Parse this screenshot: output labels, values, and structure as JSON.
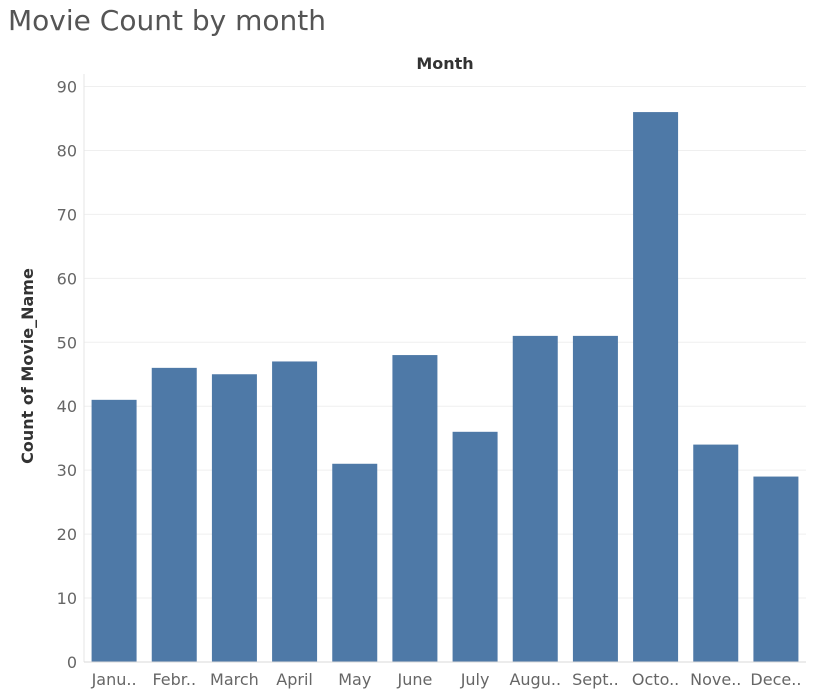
{
  "title": "Movie Count by month",
  "chart_data": {
    "type": "bar",
    "header": "Month",
    "ylabel": "Count of Movie_Name",
    "categories": [
      "Janu..",
      "Febr..",
      "March",
      "April",
      "May",
      "June",
      "July",
      "Augu..",
      "Sept..",
      "Octo..",
      "Nove..",
      "Dece.."
    ],
    "values": [
      41,
      46,
      45,
      47,
      31,
      48,
      36,
      51,
      51,
      86,
      34,
      29
    ],
    "ylim": [
      0,
      90
    ],
    "yticks": [
      0,
      10,
      20,
      30,
      40,
      50,
      60,
      70,
      80,
      90
    ],
    "grid": true,
    "bar_color": "#4e79a7"
  }
}
